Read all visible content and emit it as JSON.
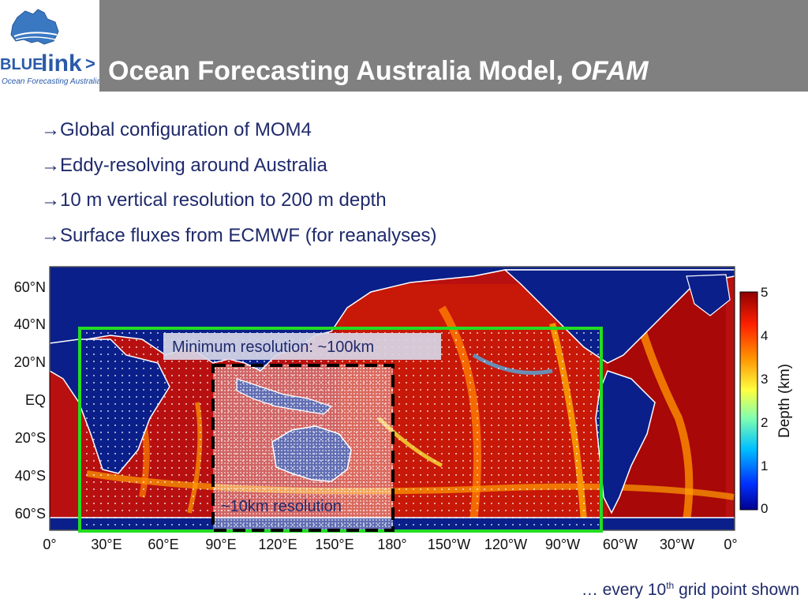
{
  "header": {
    "title_main": "Ocean Forecasting Australia Model, ",
    "title_emph": "OFAM",
    "banner_color": "#808080"
  },
  "logo": {
    "wordmark_blue": "BLUE",
    "wordmark_link": "link",
    "wordmark_arrow": ">",
    "tagline": "Ocean Forecasting Australia"
  },
  "bullets": [
    {
      "arrow": "→",
      "text": "Global configuration of MOM4"
    },
    {
      "arrow": "→",
      "text": "Eddy-resolving around Australia"
    },
    {
      "arrow": "→",
      "text": "10 m vertical resolution to 200 m depth"
    },
    {
      "arrow": "→",
      "text": "Surface fluxes from ECMWF (for reanalyses)"
    }
  ],
  "map": {
    "lat_labels": [
      "60°N",
      "40°N",
      "20°N",
      "EQ",
      "20°S",
      "40°S",
      "60°S"
    ],
    "lon_labels": [
      "0°",
      "30°E",
      "60°E",
      "90°E",
      "120°E",
      "150°E",
      "180°",
      "150°W",
      "120°W",
      "90°W",
      "60°W",
      "30°W",
      "0°"
    ],
    "outer_box_label": "Minimum resolution: ~100km",
    "inner_box_label": "~10km resolution",
    "outer_box_color": "#22dd22",
    "inner_box_color": "#000000",
    "colorbar": {
      "title": "Depth (km)",
      "ticks": [
        "5",
        "4",
        "3",
        "2",
        "1",
        "0"
      ]
    }
  },
  "footnote": {
    "prefix": "… every 10",
    "sup": "th",
    "suffix": " grid point shown"
  }
}
